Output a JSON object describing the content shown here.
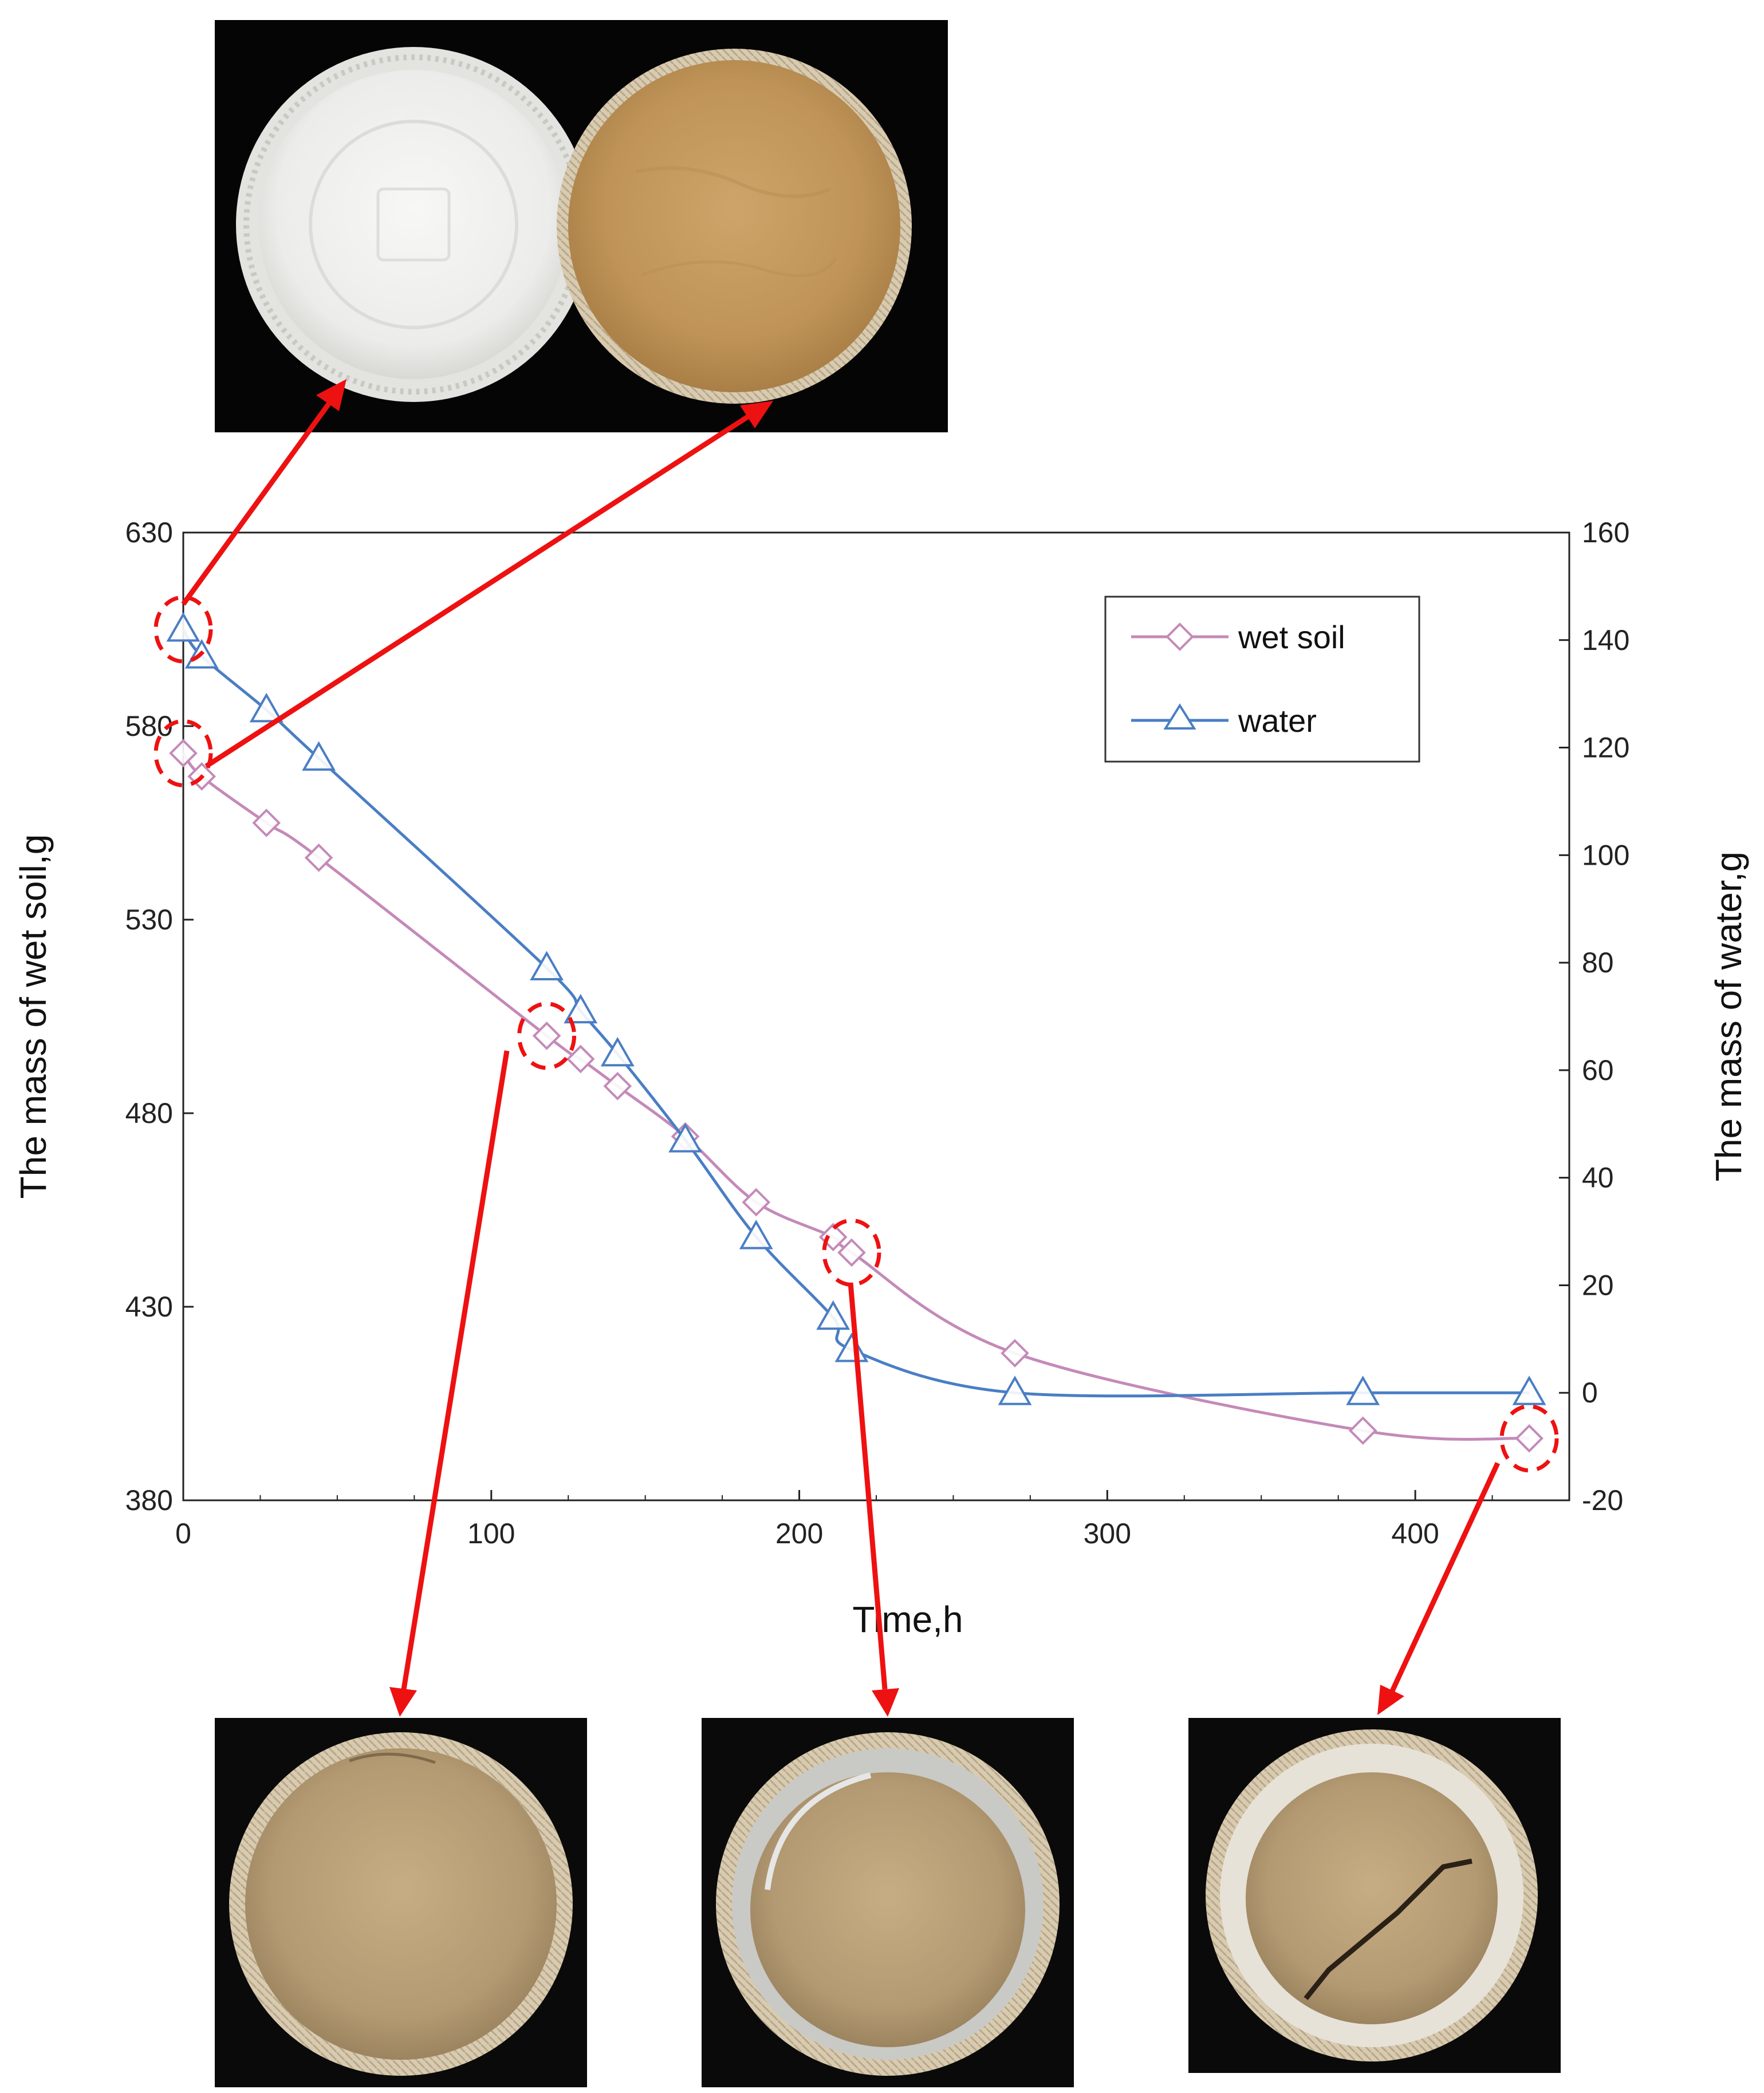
{
  "chart_data": {
    "type": "line",
    "xlabel": "Time,h",
    "ylabel_left": "The mass of wet soil,g",
    "ylabel_right": "The mass of water,g",
    "xlim": [
      0,
      450
    ],
    "ylim_left": [
      380,
      630
    ],
    "ylim_right": [
      -20,
      160
    ],
    "xticks": [
      "0",
      "100",
      "200",
      "300",
      "400"
    ],
    "yticks_left": [
      "380",
      "430",
      "480",
      "530",
      "580",
      "630"
    ],
    "yticks_right": [
      "-20",
      "0",
      "20",
      "40",
      "60",
      "80",
      "100",
      "120",
      "140",
      "160"
    ],
    "legend_position": "top-right",
    "grid": false,
    "series": [
      {
        "name": "wet soil",
        "axis": "left",
        "color": "#c48ab8",
        "marker": "diamond",
        "x": [
          0,
          6,
          27,
          44,
          118,
          129,
          141,
          163,
          186,
          211,
          217,
          270,
          383,
          437
        ],
        "y": [
          573,
          567,
          555,
          546,
          500,
          494,
          487,
          474,
          457,
          448,
          444,
          418,
          398,
          396
        ]
      },
      {
        "name": "water",
        "axis": "right",
        "color": "#4a7ec4",
        "marker": "triangle",
        "x": [
          0,
          6,
          27,
          44,
          118,
          129,
          141,
          163,
          186,
          211,
          217,
          270,
          383,
          437
        ],
        "y": [
          142,
          137,
          127,
          118,
          79,
          71,
          63,
          47,
          29,
          14,
          8,
          0,
          0,
          0
        ]
      }
    ],
    "highlight_circles": [
      {
        "series": "water",
        "point_index": 0
      },
      {
        "series": "wet soil",
        "point_index": 0
      },
      {
        "series": "wet soil",
        "point_index": 4
      },
      {
        "series": "wet soil",
        "point_index": 10
      },
      {
        "series": "wet soil",
        "point_index": 13
      }
    ],
    "annotation_color": "#ee1111"
  },
  "photos": [
    {
      "id": "plate-empty",
      "depicts": "white-plate"
    },
    {
      "id": "plate-wet",
      "depicts": "wet-soil"
    },
    {
      "id": "plate-118h",
      "depicts": "soil-shrinking"
    },
    {
      "id": "plate-217h",
      "depicts": "soil-gap"
    },
    {
      "id": "plate-437h",
      "depicts": "soil-cracked"
    }
  ]
}
